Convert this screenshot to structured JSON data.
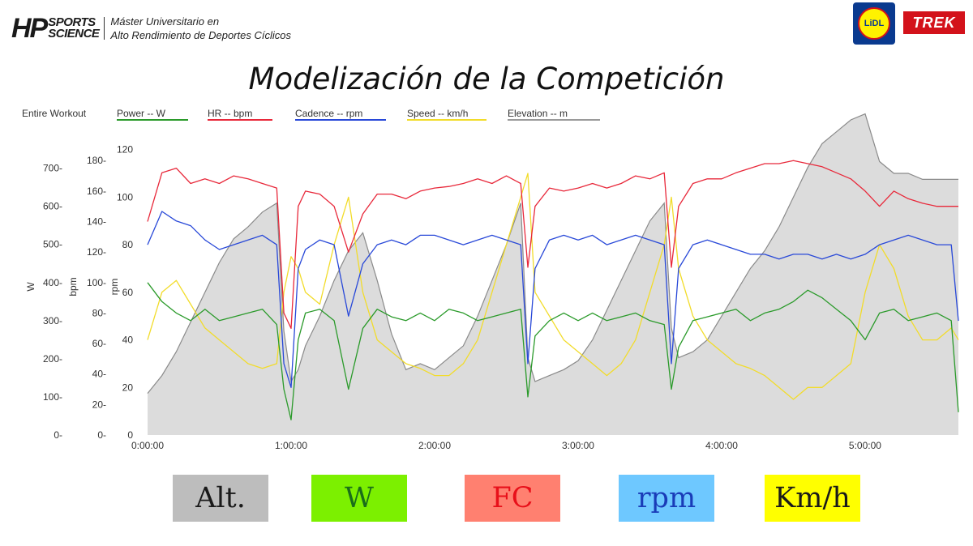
{
  "header": {
    "logo_mark": "HP",
    "logo_word1": "SPORTS",
    "logo_word2": "SCIENCE",
    "logo_line1": "Máster Universitario en",
    "logo_line2": "Alto Rendimiento de Deportes Cíclicos",
    "sponsor1": "LiDL",
    "sponsor2": "TREK"
  },
  "title": "Modelización de la Competición",
  "legend": {
    "entire": "Entire Workout",
    "items": [
      {
        "label": "Power  -- W",
        "color": "#2a9a2a"
      },
      {
        "label": "HR  -- bpm",
        "color": "#e8283a"
      },
      {
        "label": "Cadence  -- rpm",
        "color": "#2848d8"
      },
      {
        "label": "Speed  -- km/h",
        "color": "#f2dc2a"
      },
      {
        "label": "Elevation  -- m",
        "color": "#9a9a9a"
      }
    ]
  },
  "axes": {
    "w_label": "W",
    "bpm_label": "bpm",
    "rpm_label": "rpm",
    "w_ticks": [
      "0-",
      "100-",
      "200-",
      "300-",
      "400-",
      "500-",
      "600-",
      "700-"
    ],
    "bpm_ticks": [
      "0-",
      "20-",
      "40-",
      "60-",
      "80-",
      "100-",
      "120-",
      "140-",
      "160-",
      "180-"
    ],
    "rpm_ticks": [
      "0",
      "20",
      "40",
      "60",
      "80",
      "100",
      "120"
    ],
    "x_ticks": [
      "0:00:00",
      "1:00:00",
      "2:00:00",
      "3:00:00",
      "4:00:00",
      "5:00:00"
    ]
  },
  "chart_data": {
    "type": "line",
    "x_unit": "h:mm:ss",
    "x_hours": [
      0,
      0.1,
      0.2,
      0.3,
      0.4,
      0.5,
      0.6,
      0.7,
      0.8,
      0.9,
      0.95,
      1.0,
      1.05,
      1.1,
      1.2,
      1.3,
      1.4,
      1.5,
      1.6,
      1.7,
      1.8,
      1.9,
      2.0,
      2.1,
      2.2,
      2.3,
      2.4,
      2.5,
      2.6,
      2.65,
      2.7,
      2.8,
      2.9,
      3.0,
      3.1,
      3.2,
      3.3,
      3.4,
      3.5,
      3.6,
      3.65,
      3.7,
      3.8,
      3.9,
      4.0,
      4.1,
      4.2,
      4.3,
      4.4,
      4.5,
      4.6,
      4.7,
      4.8,
      4.9,
      5.0,
      5.1,
      5.2,
      5.3,
      5.4,
      5.5,
      5.6,
      5.65
    ],
    "series": [
      {
        "name": "Power  -- W",
        "axis": "W",
        "values": [
          400,
          350,
          320,
          300,
          330,
          300,
          310,
          320,
          330,
          290,
          120,
          40,
          250,
          320,
          330,
          300,
          120,
          280,
          330,
          310,
          300,
          320,
          300,
          330,
          320,
          300,
          310,
          320,
          330,
          100,
          260,
          300,
          320,
          300,
          320,
          300,
          310,
          320,
          300,
          290,
          120,
          230,
          300,
          310,
          320,
          330,
          300,
          320,
          330,
          350,
          380,
          360,
          330,
          300,
          250,
          320,
          330,
          300,
          310,
          320,
          300,
          60
        ]
      },
      {
        "name": "HR  -- bpm",
        "axis": "bpm",
        "values": [
          140,
          172,
          175,
          165,
          168,
          165,
          170,
          168,
          165,
          162,
          80,
          70,
          150,
          160,
          158,
          150,
          120,
          145,
          158,
          158,
          155,
          160,
          162,
          163,
          165,
          168,
          165,
          170,
          165,
          110,
          150,
          162,
          160,
          162,
          165,
          162,
          165,
          170,
          168,
          172,
          110,
          150,
          165,
          168,
          168,
          172,
          175,
          178,
          178,
          180,
          178,
          176,
          172,
          168,
          160,
          150,
          160,
          155,
          152,
          150,
          150,
          150
        ]
      },
      {
        "name": "Cadence  -- rpm",
        "axis": "rpm",
        "values": [
          80,
          94,
          90,
          88,
          82,
          78,
          80,
          82,
          84,
          80,
          30,
          20,
          70,
          78,
          82,
          80,
          50,
          72,
          80,
          82,
          80,
          84,
          84,
          82,
          80,
          82,
          84,
          82,
          80,
          30,
          70,
          82,
          84,
          82,
          84,
          80,
          82,
          84,
          82,
          80,
          30,
          70,
          80,
          82,
          80,
          78,
          76,
          76,
          74,
          76,
          76,
          74,
          76,
          74,
          76,
          80,
          82,
          84,
          82,
          80,
          80,
          48
        ]
      },
      {
        "name": "Speed  -- km/h",
        "axis": "rpm",
        "values": [
          40,
          60,
          65,
          55,
          45,
          40,
          35,
          30,
          28,
          30,
          60,
          75,
          70,
          60,
          55,
          80,
          100,
          60,
          40,
          35,
          30,
          28,
          25,
          25,
          30,
          40,
          60,
          80,
          100,
          110,
          60,
          50,
          40,
          35,
          30,
          25,
          30,
          40,
          60,
          80,
          100,
          70,
          50,
          40,
          35,
          30,
          28,
          25,
          20,
          15,
          20,
          20,
          25,
          30,
          60,
          80,
          70,
          50,
          40,
          40,
          45,
          40
        ]
      },
      {
        "name": "Elevation  -- m",
        "axis": "elev",
        "values": [
          0.14,
          0.2,
          0.28,
          0.38,
          0.48,
          0.58,
          0.66,
          0.7,
          0.75,
          0.78,
          0.35,
          0.18,
          0.22,
          0.3,
          0.4,
          0.52,
          0.62,
          0.68,
          0.52,
          0.34,
          0.22,
          0.24,
          0.22,
          0.26,
          0.3,
          0.4,
          0.52,
          0.64,
          0.78,
          0.26,
          0.18,
          0.2,
          0.22,
          0.25,
          0.32,
          0.42,
          0.52,
          0.62,
          0.72,
          0.78,
          0.36,
          0.26,
          0.28,
          0.32,
          0.4,
          0.48,
          0.56,
          0.62,
          0.7,
          0.8,
          0.9,
          0.98,
          1.02,
          1.06,
          1.08,
          0.92,
          0.88,
          0.88,
          0.86,
          0.86,
          0.86,
          0.86
        ]
      }
    ],
    "ylim_W": [
      0,
      780
    ],
    "ylim_bpm": [
      0,
      195
    ],
    "ylim_rpm": [
      0,
      125
    ],
    "xlim": [
      0,
      5.65
    ],
    "grid": false,
    "legend": "top"
  },
  "boxes": [
    {
      "label": "Alt.",
      "bg": "#bdbdbd",
      "fg": "#1a1a1a"
    },
    {
      "label": "W",
      "bg": "#7cf000",
      "fg": "#1a6e1a"
    },
    {
      "label": "FC",
      "bg": "#ff8070",
      "fg": "#e8101a"
    },
    {
      "label": "rpm",
      "bg": "#6ec8ff",
      "fg": "#1a3cb8"
    },
    {
      "label": "Km/h",
      "bg": "#ffff00",
      "fg": "#1a1a1a"
    }
  ]
}
